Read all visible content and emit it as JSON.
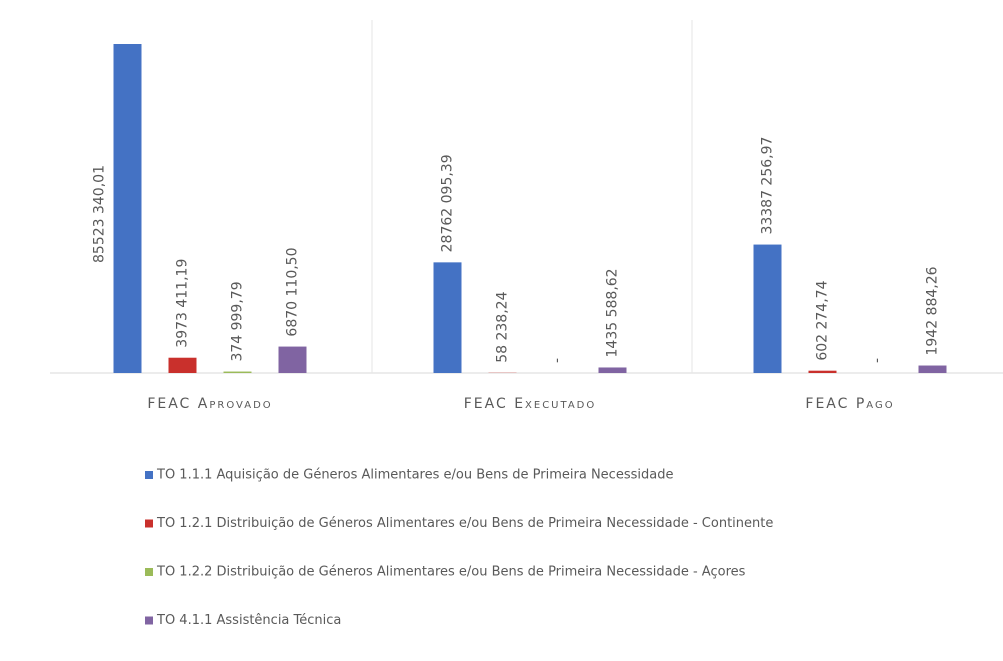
{
  "chart_data": {
    "type": "bar",
    "categories": [
      "FEAC Aprovado",
      "FEAC Executado",
      "FEAC Pago"
    ],
    "series": [
      {
        "name": "TO 1.1.1 Aquisição de Géneros Alimentares e/ou Bens de Primeira Necessidade",
        "color": "#4472c4",
        "values": [
          85523340.01,
          28762095.39,
          33387256.97
        ],
        "value_labels": [
          "85523 340,01",
          "28762 095,39",
          "33387 256,97"
        ]
      },
      {
        "name": "TO 1.2.1 Distribuição de Géneros Alimentares e/ou Bens de Primeira Necessidade - Continente",
        "color": "#c9302c",
        "values": [
          3973411.19,
          58238.24,
          602274.74
        ],
        "value_labels": [
          "3973 411,19",
          "58 238,24",
          "602 274,74"
        ]
      },
      {
        "name": "TO 1.2.2 Distribuição de Géneros Alimentares e/ou Bens de Primeira Necessidade - Açores",
        "color": "#9bbb59",
        "values": [
          374999.79,
          0,
          0
        ],
        "value_labels": [
          "374 999,79",
          "-",
          "-"
        ]
      },
      {
        "name": "TO 4.1.1 Assistência Técnica",
        "color": "#8064a2",
        "values": [
          6870110.5,
          1435588.62,
          1942884.26
        ],
        "value_labels": [
          "6870 110,50",
          "1435 588,62",
          "1942 884,26"
        ]
      }
    ],
    "legend": "bottom"
  }
}
